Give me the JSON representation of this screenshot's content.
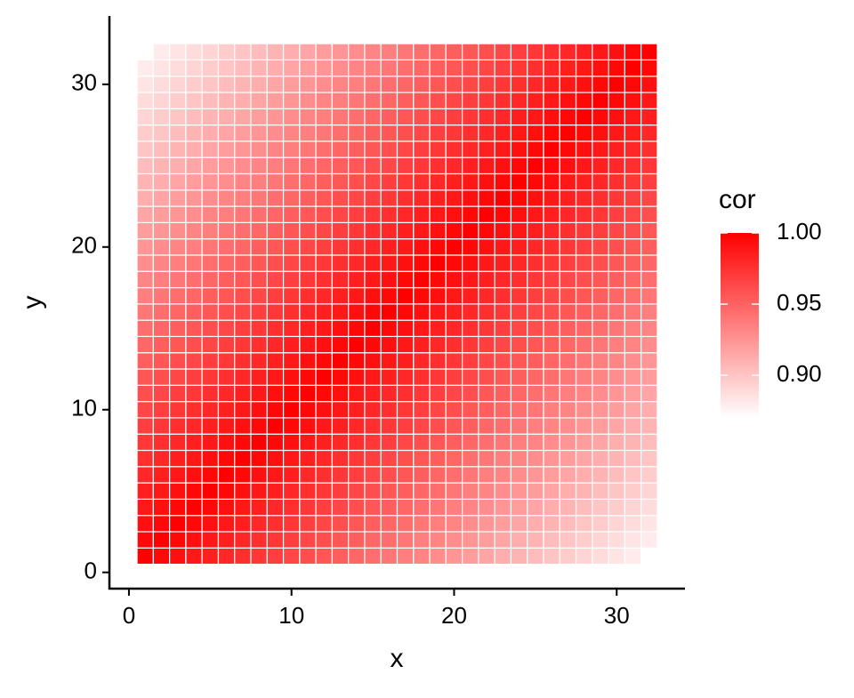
{
  "chart_data": {
    "type": "heatmap",
    "x_label": "x",
    "y_label": "y",
    "legend_title": "cor",
    "x": [
      1,
      2,
      3,
      4,
      5,
      6,
      7,
      8,
      9,
      10,
      11,
      12,
      13,
      14,
      15,
      16,
      17,
      18,
      19,
      20,
      21,
      22,
      23,
      24,
      25,
      26,
      27,
      28,
      29,
      30,
      31,
      32
    ],
    "y": [
      1,
      2,
      3,
      4,
      5,
      6,
      7,
      8,
      9,
      10,
      11,
      12,
      13,
      14,
      15,
      16,
      17,
      18,
      19,
      20,
      21,
      22,
      23,
      24,
      25,
      26,
      27,
      28,
      29,
      30,
      31,
      32
    ],
    "z": [
      [
        1,
        0.996,
        0.992,
        0.988,
        0.984,
        0.98,
        0.976,
        0.972,
        0.968,
        0.964,
        0.96,
        0.956,
        0.952,
        0.948,
        0.944,
        0.94,
        0.936,
        0.932,
        0.928,
        0.924,
        0.92,
        0.916,
        0.912,
        0.908,
        0.904,
        0.9,
        0.896,
        0.892,
        0.888,
        0.884,
        0.88,
        null
      ],
      [
        0.996,
        1,
        0.996,
        0.992,
        0.988,
        0.984,
        0.98,
        0.976,
        0.972,
        0.968,
        0.964,
        0.96,
        0.956,
        0.952,
        0.948,
        0.944,
        0.94,
        0.936,
        0.932,
        0.928,
        0.924,
        0.92,
        0.916,
        0.912,
        0.908,
        0.904,
        0.9,
        0.896,
        0.892,
        0.888,
        0.884,
        0.88
      ],
      [
        0.992,
        0.996,
        1,
        0.996,
        0.992,
        0.988,
        0.984,
        0.98,
        0.976,
        0.972,
        0.968,
        0.964,
        0.96,
        0.956,
        0.952,
        0.948,
        0.944,
        0.94,
        0.936,
        0.932,
        0.928,
        0.924,
        0.92,
        0.916,
        0.912,
        0.908,
        0.904,
        0.9,
        0.896,
        0.892,
        0.888,
        0.884
      ],
      [
        0.988,
        0.992,
        0.996,
        1,
        0.996,
        0.992,
        0.988,
        0.984,
        0.98,
        0.976,
        0.972,
        0.968,
        0.964,
        0.96,
        0.956,
        0.952,
        0.948,
        0.944,
        0.94,
        0.936,
        0.932,
        0.928,
        0.924,
        0.92,
        0.916,
        0.912,
        0.908,
        0.904,
        0.9,
        0.896,
        0.892,
        0.888
      ],
      [
        0.984,
        0.988,
        0.992,
        0.996,
        1,
        0.996,
        0.992,
        0.988,
        0.984,
        0.98,
        0.976,
        0.972,
        0.968,
        0.964,
        0.96,
        0.956,
        0.952,
        0.948,
        0.944,
        0.94,
        0.936,
        0.932,
        0.928,
        0.924,
        0.92,
        0.916,
        0.912,
        0.908,
        0.904,
        0.9,
        0.896,
        0.892
      ],
      [
        0.98,
        0.984,
        0.988,
        0.992,
        0.996,
        1,
        0.996,
        0.992,
        0.988,
        0.984,
        0.98,
        0.976,
        0.972,
        0.968,
        0.964,
        0.96,
        0.956,
        0.952,
        0.948,
        0.944,
        0.94,
        0.936,
        0.932,
        0.928,
        0.924,
        0.92,
        0.916,
        0.912,
        0.908,
        0.904,
        0.9,
        0.896
      ],
      [
        0.976,
        0.98,
        0.984,
        0.988,
        0.992,
        0.996,
        1,
        0.996,
        0.992,
        0.988,
        0.984,
        0.98,
        0.976,
        0.972,
        0.968,
        0.964,
        0.96,
        0.956,
        0.952,
        0.948,
        0.944,
        0.94,
        0.936,
        0.932,
        0.928,
        0.924,
        0.92,
        0.916,
        0.912,
        0.908,
        0.904,
        0.9
      ],
      [
        0.972,
        0.976,
        0.98,
        0.984,
        0.988,
        0.992,
        0.996,
        1,
        0.996,
        0.992,
        0.988,
        0.984,
        0.98,
        0.976,
        0.972,
        0.968,
        0.964,
        0.96,
        0.956,
        0.952,
        0.948,
        0.944,
        0.94,
        0.936,
        0.932,
        0.928,
        0.924,
        0.92,
        0.916,
        0.912,
        0.908,
        0.904
      ],
      [
        0.968,
        0.972,
        0.976,
        0.98,
        0.984,
        0.988,
        0.992,
        0.996,
        1,
        0.996,
        0.992,
        0.988,
        0.984,
        0.98,
        0.976,
        0.972,
        0.968,
        0.964,
        0.96,
        0.956,
        0.952,
        0.948,
        0.944,
        0.94,
        0.936,
        0.932,
        0.928,
        0.924,
        0.92,
        0.916,
        0.912,
        0.908
      ],
      [
        0.964,
        0.968,
        0.972,
        0.976,
        0.98,
        0.984,
        0.988,
        0.992,
        0.996,
        1,
        0.996,
        0.992,
        0.988,
        0.984,
        0.98,
        0.976,
        0.972,
        0.968,
        0.964,
        0.96,
        0.956,
        0.952,
        0.948,
        0.944,
        0.94,
        0.936,
        0.932,
        0.928,
        0.924,
        0.92,
        0.916,
        0.912
      ],
      [
        0.96,
        0.964,
        0.968,
        0.972,
        0.976,
        0.98,
        0.984,
        0.988,
        0.992,
        0.996,
        1,
        0.996,
        0.992,
        0.988,
        0.984,
        0.98,
        0.976,
        0.972,
        0.968,
        0.964,
        0.96,
        0.956,
        0.952,
        0.948,
        0.944,
        0.94,
        0.936,
        0.932,
        0.928,
        0.924,
        0.92,
        0.916
      ],
      [
        0.956,
        0.96,
        0.964,
        0.968,
        0.972,
        0.976,
        0.98,
        0.984,
        0.988,
        0.992,
        0.996,
        1,
        0.996,
        0.992,
        0.988,
        0.984,
        0.98,
        0.976,
        0.972,
        0.968,
        0.964,
        0.96,
        0.956,
        0.952,
        0.948,
        0.944,
        0.94,
        0.936,
        0.932,
        0.928,
        0.924,
        0.92
      ],
      [
        0.952,
        0.956,
        0.96,
        0.964,
        0.968,
        0.972,
        0.976,
        0.98,
        0.984,
        0.988,
        0.992,
        0.996,
        1,
        0.996,
        0.992,
        0.988,
        0.984,
        0.98,
        0.976,
        0.972,
        0.968,
        0.964,
        0.96,
        0.956,
        0.952,
        0.948,
        0.944,
        0.94,
        0.936,
        0.932,
        0.928,
        0.924
      ],
      [
        0.948,
        0.952,
        0.956,
        0.96,
        0.964,
        0.968,
        0.972,
        0.976,
        0.98,
        0.984,
        0.988,
        0.992,
        0.996,
        1,
        0.996,
        0.992,
        0.988,
        0.984,
        0.98,
        0.976,
        0.972,
        0.968,
        0.964,
        0.96,
        0.956,
        0.952,
        0.948,
        0.944,
        0.94,
        0.936,
        0.932,
        0.928
      ],
      [
        0.944,
        0.948,
        0.952,
        0.956,
        0.96,
        0.964,
        0.968,
        0.972,
        0.976,
        0.98,
        0.984,
        0.988,
        0.992,
        0.996,
        1,
        0.996,
        0.992,
        0.988,
        0.984,
        0.98,
        0.976,
        0.972,
        0.968,
        0.964,
        0.96,
        0.956,
        0.952,
        0.948,
        0.944,
        0.94,
        0.936,
        0.932
      ],
      [
        0.94,
        0.944,
        0.948,
        0.952,
        0.956,
        0.96,
        0.964,
        0.968,
        0.972,
        0.976,
        0.98,
        0.984,
        0.988,
        0.992,
        0.996,
        1,
        0.996,
        0.992,
        0.988,
        0.984,
        0.98,
        0.976,
        0.972,
        0.968,
        0.964,
        0.96,
        0.956,
        0.952,
        0.948,
        0.944,
        0.94,
        0.936
      ],
      [
        0.936,
        0.94,
        0.944,
        0.948,
        0.952,
        0.956,
        0.96,
        0.964,
        0.968,
        0.972,
        0.976,
        0.98,
        0.984,
        0.988,
        0.992,
        0.996,
        1,
        0.996,
        0.992,
        0.988,
        0.984,
        0.98,
        0.976,
        0.972,
        0.968,
        0.964,
        0.96,
        0.956,
        0.952,
        0.948,
        0.944,
        0.94
      ],
      [
        0.932,
        0.936,
        0.94,
        0.944,
        0.948,
        0.952,
        0.956,
        0.96,
        0.964,
        0.968,
        0.972,
        0.976,
        0.98,
        0.984,
        0.988,
        0.992,
        0.996,
        1,
        0.996,
        0.992,
        0.988,
        0.984,
        0.98,
        0.976,
        0.972,
        0.968,
        0.964,
        0.96,
        0.956,
        0.952,
        0.948,
        0.944
      ],
      [
        0.928,
        0.932,
        0.936,
        0.94,
        0.944,
        0.948,
        0.952,
        0.956,
        0.96,
        0.964,
        0.968,
        0.972,
        0.976,
        0.98,
        0.984,
        0.988,
        0.992,
        0.996,
        1,
        0.996,
        0.992,
        0.988,
        0.984,
        0.98,
        0.976,
        0.972,
        0.968,
        0.964,
        0.96,
        0.956,
        0.952,
        0.948
      ],
      [
        0.924,
        0.928,
        0.932,
        0.936,
        0.94,
        0.944,
        0.948,
        0.952,
        0.956,
        0.96,
        0.964,
        0.968,
        0.972,
        0.976,
        0.98,
        0.984,
        0.988,
        0.992,
        0.996,
        1,
        0.996,
        0.992,
        0.988,
        0.984,
        0.98,
        0.976,
        0.972,
        0.968,
        0.964,
        0.96,
        0.956,
        0.952
      ],
      [
        0.92,
        0.924,
        0.928,
        0.932,
        0.936,
        0.94,
        0.944,
        0.948,
        0.952,
        0.956,
        0.96,
        0.964,
        0.968,
        0.972,
        0.976,
        0.98,
        0.984,
        0.988,
        0.992,
        0.996,
        1,
        0.996,
        0.992,
        0.988,
        0.984,
        0.98,
        0.976,
        0.972,
        0.968,
        0.964,
        0.96,
        0.956
      ],
      [
        0.916,
        0.92,
        0.924,
        0.928,
        0.932,
        0.936,
        0.94,
        0.944,
        0.948,
        0.952,
        0.956,
        0.96,
        0.964,
        0.968,
        0.972,
        0.976,
        0.98,
        0.984,
        0.988,
        0.992,
        0.996,
        1,
        0.996,
        0.992,
        0.988,
        0.984,
        0.98,
        0.976,
        0.972,
        0.968,
        0.964,
        0.96
      ],
      [
        0.912,
        0.916,
        0.92,
        0.924,
        0.928,
        0.932,
        0.936,
        0.94,
        0.944,
        0.948,
        0.952,
        0.956,
        0.96,
        0.964,
        0.968,
        0.972,
        0.976,
        0.98,
        0.984,
        0.988,
        0.992,
        0.996,
        1,
        0.996,
        0.992,
        0.988,
        0.984,
        0.98,
        0.976,
        0.972,
        0.968,
        0.964
      ],
      [
        0.908,
        0.912,
        0.916,
        0.92,
        0.924,
        0.928,
        0.932,
        0.936,
        0.94,
        0.944,
        0.948,
        0.952,
        0.956,
        0.96,
        0.964,
        0.968,
        0.972,
        0.976,
        0.98,
        0.984,
        0.988,
        0.992,
        0.996,
        1,
        0.996,
        0.992,
        0.988,
        0.984,
        0.98,
        0.976,
        0.972,
        0.968
      ],
      [
        0.904,
        0.908,
        0.912,
        0.916,
        0.92,
        0.924,
        0.928,
        0.932,
        0.936,
        0.94,
        0.944,
        0.948,
        0.952,
        0.956,
        0.96,
        0.964,
        0.968,
        0.972,
        0.976,
        0.98,
        0.984,
        0.988,
        0.992,
        0.996,
        1,
        0.996,
        0.992,
        0.988,
        0.984,
        0.98,
        0.976,
        0.972
      ],
      [
        0.9,
        0.904,
        0.908,
        0.912,
        0.916,
        0.92,
        0.924,
        0.928,
        0.932,
        0.936,
        0.94,
        0.944,
        0.948,
        0.952,
        0.956,
        0.96,
        0.964,
        0.968,
        0.972,
        0.976,
        0.98,
        0.984,
        0.988,
        0.992,
        0.996,
        1,
        0.996,
        0.992,
        0.988,
        0.984,
        0.98,
        0.976
      ],
      [
        0.896,
        0.9,
        0.904,
        0.908,
        0.912,
        0.916,
        0.92,
        0.924,
        0.928,
        0.932,
        0.936,
        0.94,
        0.944,
        0.948,
        0.952,
        0.956,
        0.96,
        0.964,
        0.968,
        0.972,
        0.976,
        0.98,
        0.984,
        0.988,
        0.992,
        0.996,
        1,
        0.996,
        0.992,
        0.988,
        0.984,
        0.98
      ],
      [
        0.892,
        0.896,
        0.9,
        0.904,
        0.908,
        0.912,
        0.916,
        0.92,
        0.924,
        0.928,
        0.932,
        0.936,
        0.94,
        0.944,
        0.948,
        0.952,
        0.956,
        0.96,
        0.964,
        0.968,
        0.972,
        0.976,
        0.98,
        0.984,
        0.988,
        0.992,
        0.996,
        1,
        0.996,
        0.992,
        0.988,
        0.984
      ],
      [
        0.888,
        0.892,
        0.896,
        0.9,
        0.904,
        0.908,
        0.912,
        0.916,
        0.92,
        0.924,
        0.928,
        0.932,
        0.936,
        0.94,
        0.944,
        0.948,
        0.952,
        0.956,
        0.96,
        0.964,
        0.968,
        0.972,
        0.976,
        0.98,
        0.984,
        0.988,
        0.992,
        0.996,
        1,
        0.996,
        0.992,
        0.988
      ],
      [
        0.884,
        0.888,
        0.892,
        0.896,
        0.9,
        0.904,
        0.908,
        0.912,
        0.916,
        0.92,
        0.924,
        0.928,
        0.932,
        0.936,
        0.94,
        0.944,
        0.948,
        0.952,
        0.956,
        0.96,
        0.964,
        0.968,
        0.972,
        0.976,
        0.98,
        0.984,
        0.988,
        0.992,
        0.996,
        1,
        0.996,
        0.992
      ],
      [
        0.88,
        0.884,
        0.888,
        0.892,
        0.896,
        0.9,
        0.904,
        0.908,
        0.912,
        0.916,
        0.92,
        0.924,
        0.928,
        0.932,
        0.936,
        0.94,
        0.944,
        0.948,
        0.952,
        0.956,
        0.96,
        0.964,
        0.968,
        0.972,
        0.976,
        0.98,
        0.984,
        0.988,
        0.992,
        0.996,
        1,
        0.996
      ],
      [
        null,
        0.88,
        0.884,
        0.888,
        0.892,
        0.896,
        0.9,
        0.904,
        0.908,
        0.912,
        0.916,
        0.92,
        0.924,
        0.928,
        0.932,
        0.936,
        0.94,
        0.944,
        0.948,
        0.952,
        0.956,
        0.96,
        0.964,
        0.968,
        0.972,
        0.976,
        0.98,
        0.984,
        0.988,
        0.992,
        0.996,
        1
      ]
    ],
    "xlim": [
      -1.2,
      34.2
    ],
    "ylim": [
      -1.0,
      34.2
    ],
    "xticks": [
      0,
      10,
      20,
      30
    ],
    "yticks": [
      0,
      10,
      20,
      30
    ],
    "color_low": "#ffffff",
    "color_high": "#ff0000",
    "colorlim": [
      0.87,
      1
    ],
    "colorticks": [
      {
        "value": 1,
        "label": "1.00"
      },
      0.95,
      {
        "value": 0.9,
        "label": "0.90"
      }
    ]
  }
}
